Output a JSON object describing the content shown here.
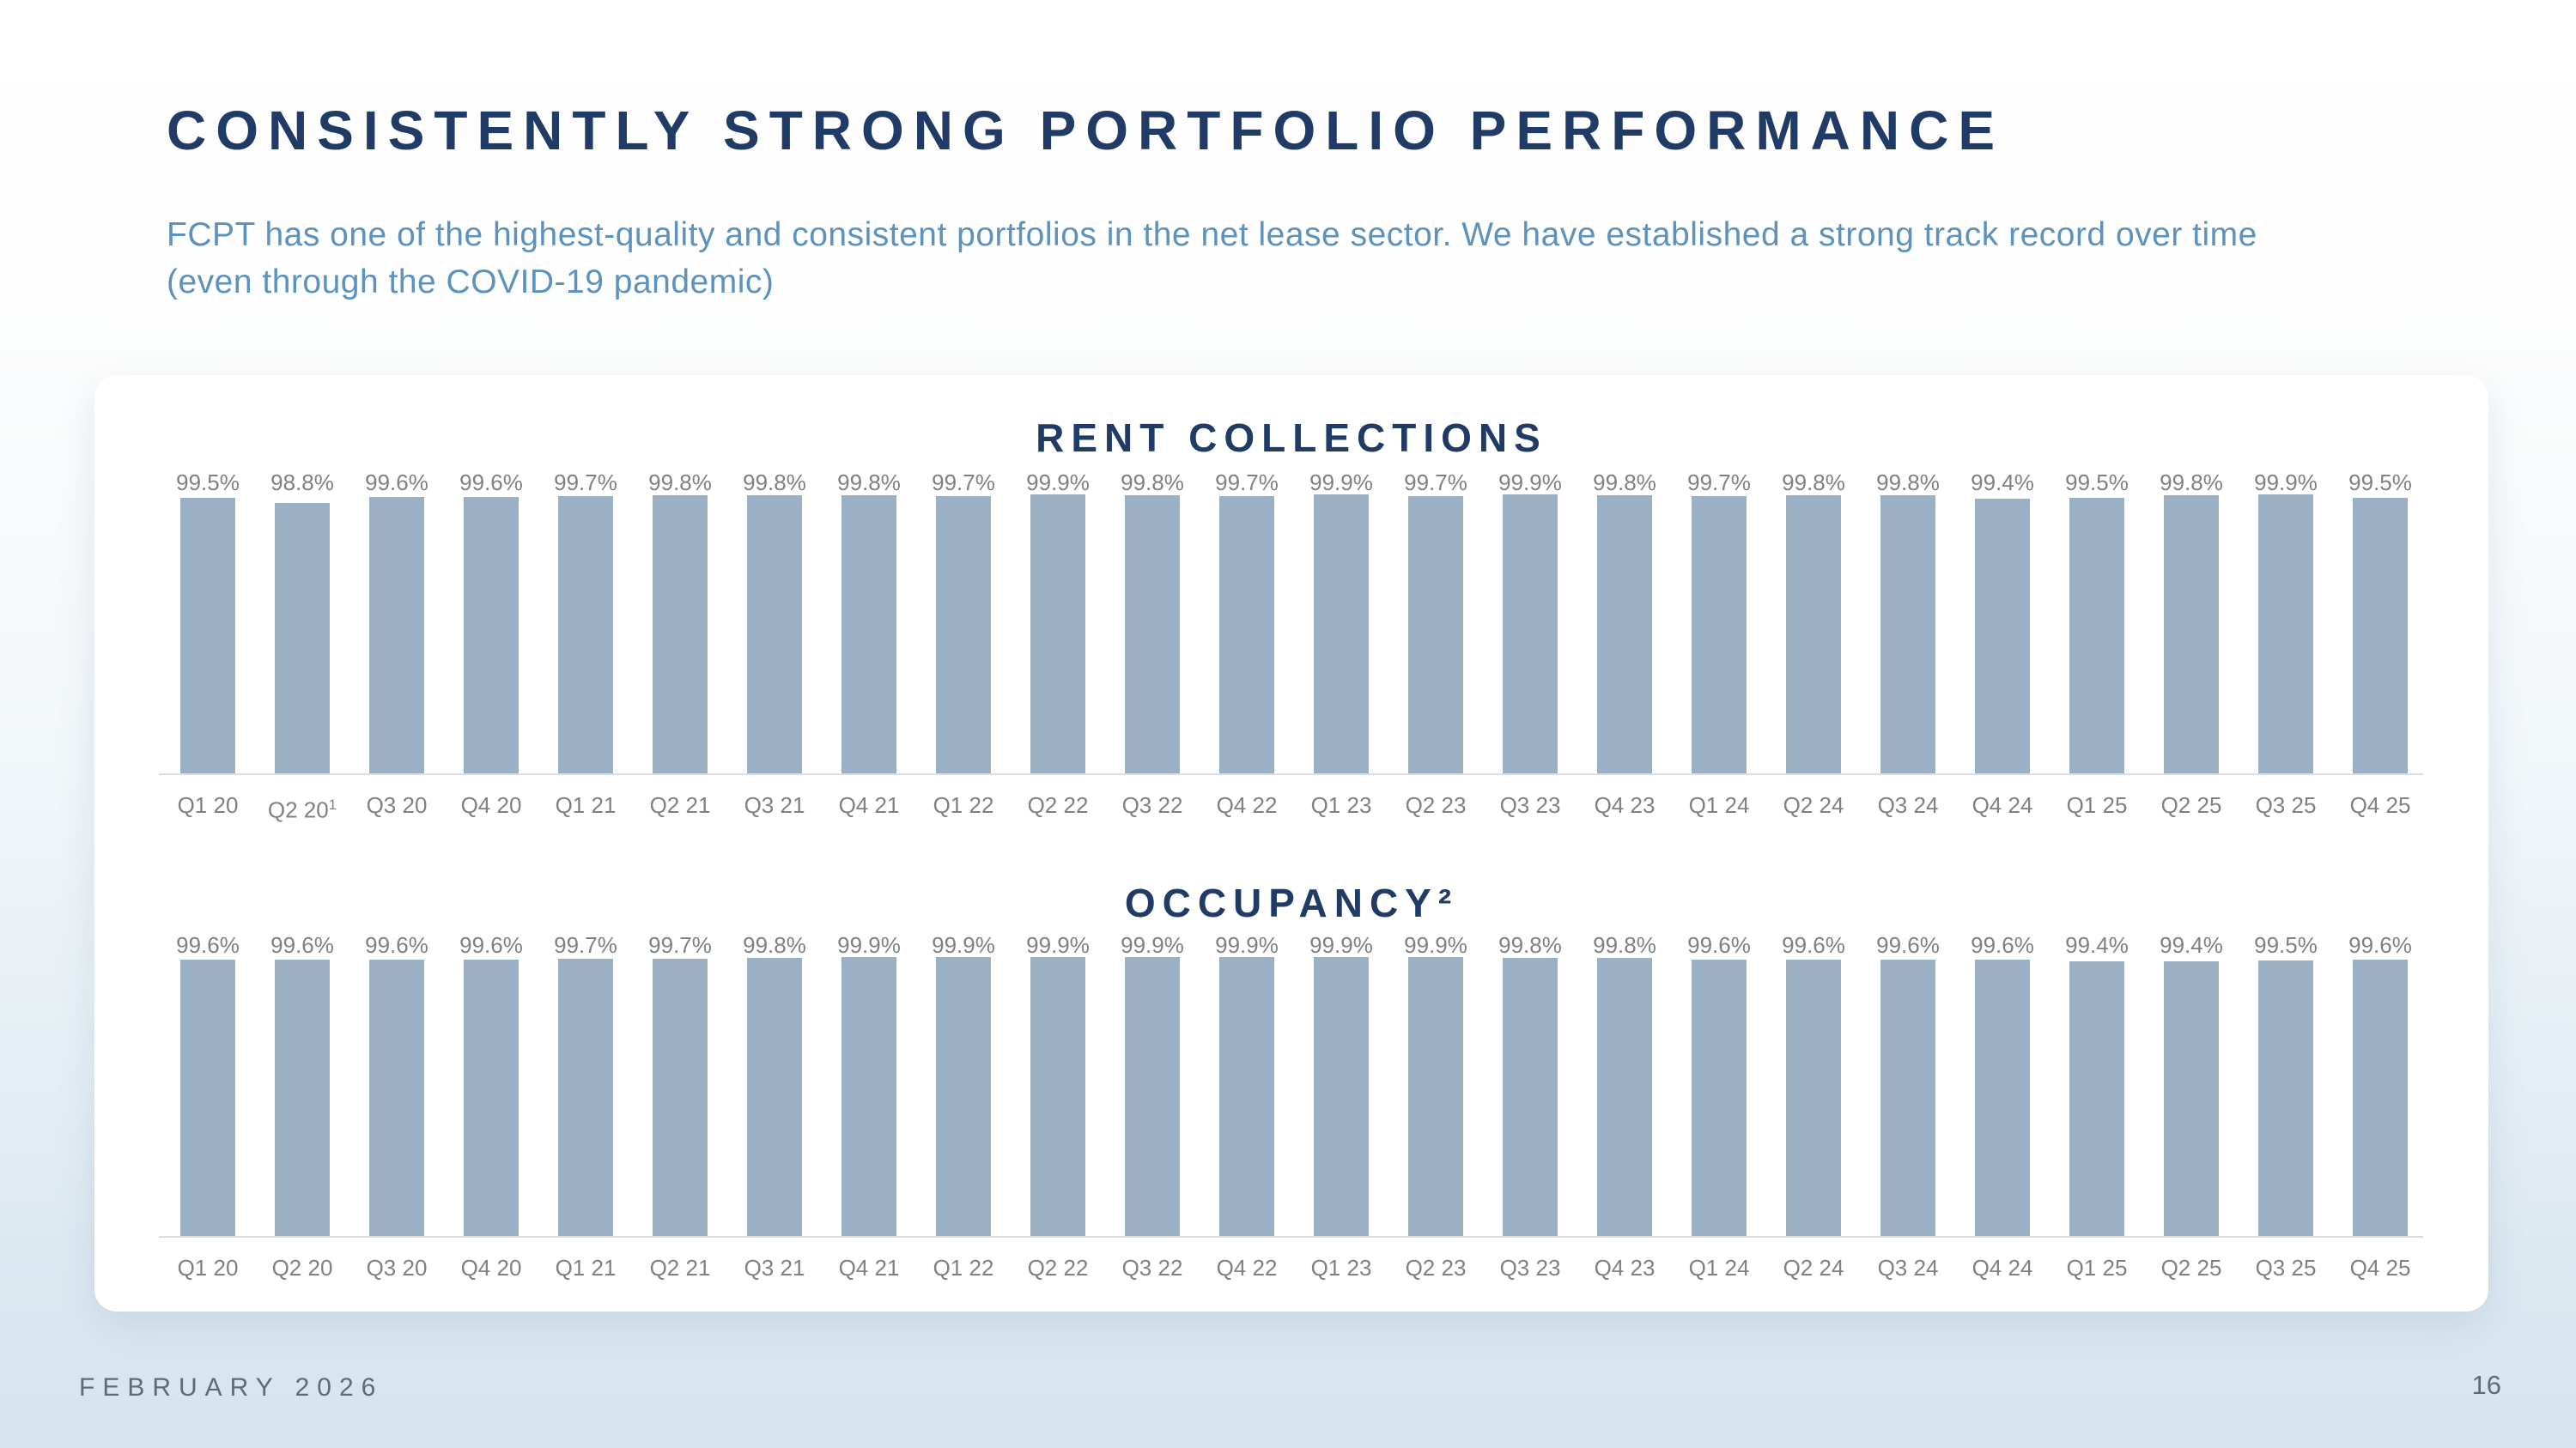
{
  "slide": {
    "title": "CONSISTENTLY STRONG PORTFOLIO PERFORMANCE",
    "subtitle": "FCPT has one of the highest-quality and consistent portfolios in the net lease sector. We have established a strong track record over time (even through the COVID-19 pandemic)",
    "footer_date": "FEBRUARY 2026",
    "page_number": "16"
  },
  "colors": {
    "title_navy": "#203C66",
    "subtitle_blue": "#5C92BE",
    "bar_fill": "#9CB0C5",
    "label_gray": "#7E8184",
    "axis_line": "#DBDDDE",
    "footer_gray": "#5D6C77",
    "card_background": "#FFFFFF",
    "page_background_bottom": "#D7E4EE"
  },
  "chart_data": [
    {
      "type": "bar",
      "title": "RENT COLLECTIONS",
      "categories": [
        "Q1 20",
        "Q2 20",
        "Q3 20",
        "Q4 20",
        "Q1 21",
        "Q2 21",
        "Q3 21",
        "Q4 21",
        "Q1 22",
        "Q2 22",
        "Q3 22",
        "Q4 22",
        "Q1 23",
        "Q2 23",
        "Q3 23",
        "Q4 23",
        "Q1 24",
        "Q2 24",
        "Q3 24",
        "Q4 24",
        "Q1 25",
        "Q2 25",
        "Q3 25",
        "Q4 25"
      ],
      "category_superscripts": {
        "1": "1"
      },
      "values": [
        99.5,
        98.8,
        99.6,
        99.6,
        99.7,
        99.8,
        99.8,
        99.8,
        99.7,
        99.9,
        99.8,
        99.7,
        99.9,
        99.7,
        99.9,
        99.8,
        99.7,
        99.8,
        99.8,
        99.4,
        99.5,
        99.8,
        99.9,
        99.5
      ],
      "value_labels": [
        "99.5%",
        "98.8%",
        "99.6%",
        "99.6%",
        "99.7%",
        "99.8%",
        "99.8%",
        "99.8%",
        "99.7%",
        "99.9%",
        "99.8%",
        "99.7%",
        "99.9%",
        "99.7%",
        "99.9%",
        "99.8%",
        "99.7%",
        "99.8%",
        "99.8%",
        "99.4%",
        "99.5%",
        "99.8%",
        "99.9%",
        "99.5%"
      ],
      "ylim": [
        65,
        100
      ],
      "grid": false,
      "y_axis_visible": false,
      "data_labels": true,
      "legend": "none"
    },
    {
      "type": "bar",
      "title": "OCCUPANCY²",
      "categories": [
        "Q1 20",
        "Q2 20",
        "Q3 20",
        "Q4 20",
        "Q1 21",
        "Q2 21",
        "Q3 21",
        "Q4 21",
        "Q1 22",
        "Q2 22",
        "Q3 22",
        "Q4 22",
        "Q1 23",
        "Q2 23",
        "Q3 23",
        "Q4 23",
        "Q1 24",
        "Q2 24",
        "Q3 24",
        "Q4 24",
        "Q1 25",
        "Q2 25",
        "Q3 25",
        "Q4 25"
      ],
      "category_superscripts": {},
      "values": [
        99.6,
        99.6,
        99.6,
        99.6,
        99.7,
        99.7,
        99.8,
        99.9,
        99.9,
        99.9,
        99.9,
        99.9,
        99.9,
        99.9,
        99.8,
        99.8,
        99.6,
        99.6,
        99.6,
        99.6,
        99.4,
        99.4,
        99.5,
        99.6
      ],
      "value_labels": [
        "99.6%",
        "99.6%",
        "99.6%",
        "99.6%",
        "99.7%",
        "99.7%",
        "99.8%",
        "99.9%",
        "99.9%",
        "99.9%",
        "99.9%",
        "99.9%",
        "99.9%",
        "99.9%",
        "99.8%",
        "99.8%",
        "99.6%",
        "99.6%",
        "99.6%",
        "99.6%",
        "99.4%",
        "99.4%",
        "99.5%",
        "99.6%"
      ],
      "ylim": [
        65,
        100
      ],
      "grid": false,
      "y_axis_visible": false,
      "data_labels": true,
      "legend": "none"
    }
  ]
}
